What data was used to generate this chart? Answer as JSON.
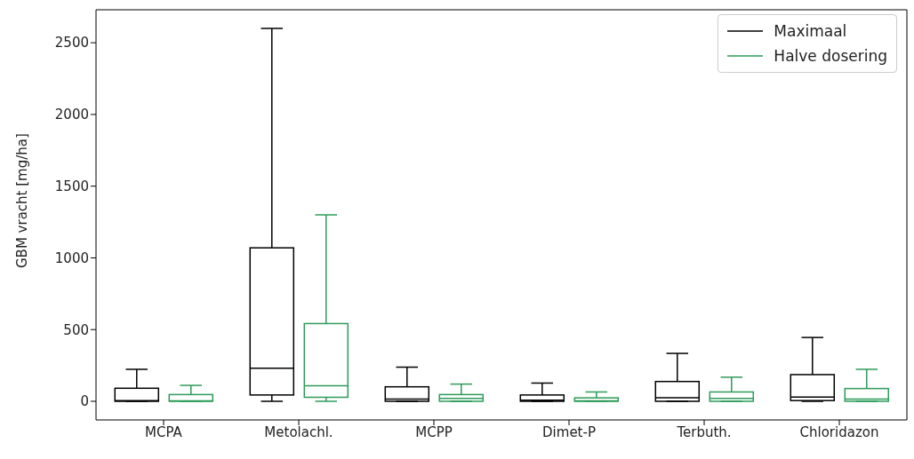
{
  "chart_data": {
    "type": "box",
    "ylabel": "GBM vracht [mg/ha]",
    "categories": [
      "MCPA",
      "Metolachl.",
      "MCPP",
      "Dimet-P",
      "Terbuth.",
      "Chloridazon"
    ],
    "ylim": [
      -130,
      2730
    ],
    "yticks": [
      0,
      500,
      1000,
      1500,
      2000,
      2500
    ],
    "legend": "top right",
    "series": [
      {
        "name": "Maximaal",
        "color": "#000000",
        "boxes": [
          {
            "low": 0,
            "q1": 0,
            "median": 4,
            "q3": 91,
            "high": 223
          },
          {
            "low": 0,
            "q1": 44,
            "median": 230,
            "q3": 1070,
            "high": 2600
          },
          {
            "low": 0,
            "q1": 0,
            "median": 16,
            "q3": 101,
            "high": 238
          },
          {
            "low": 0,
            "q1": 0,
            "median": 8,
            "q3": 44,
            "high": 127
          },
          {
            "low": 0,
            "q1": 0,
            "median": 24,
            "q3": 138,
            "high": 334
          },
          {
            "low": 0,
            "q1": 5,
            "median": 30,
            "q3": 186,
            "high": 445
          }
        ]
      },
      {
        "name": "Halve dosering",
        "color": "#2e9b5a",
        "boxes": [
          {
            "low": 0,
            "q1": 0,
            "median": 3,
            "q3": 47,
            "high": 111
          },
          {
            "low": 0,
            "q1": 28,
            "median": 109,
            "q3": 542,
            "high": 1300
          },
          {
            "low": 0,
            "q1": 0,
            "median": 20,
            "q3": 47,
            "high": 120
          },
          {
            "low": 0,
            "q1": 0,
            "median": 3,
            "q3": 24,
            "high": 65
          },
          {
            "low": 0,
            "q1": 0,
            "median": 20,
            "q3": 65,
            "high": 168
          },
          {
            "low": 0,
            "q1": 0,
            "median": 16,
            "q3": 89,
            "high": 223
          }
        ]
      }
    ]
  }
}
